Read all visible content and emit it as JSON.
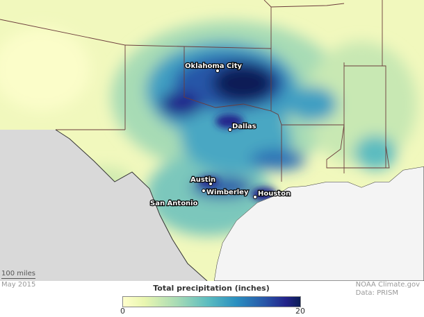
{
  "map": {
    "cities": [
      {
        "name": "Oklahoma City"
      },
      {
        "name": "Dallas"
      },
      {
        "name": "Austin"
      },
      {
        "name": "Wimberley"
      },
      {
        "name": "San Antonio"
      },
      {
        "name": "Houston"
      }
    ],
    "scale_label": "100 miles",
    "colors": {
      "low": "#ffffcc",
      "high": "#0b1c56",
      "land_outside": "#d9d9d9",
      "water": "#f4f4f4"
    }
  },
  "footer": {
    "date": "May 2015",
    "credit_line1": "NOAA Climate.gov",
    "credit_line2": "Data: PRISM"
  },
  "legend": {
    "title": "Total precipitation (inches)",
    "min": "0",
    "max": "20",
    "range": [
      0,
      20
    ]
  }
}
